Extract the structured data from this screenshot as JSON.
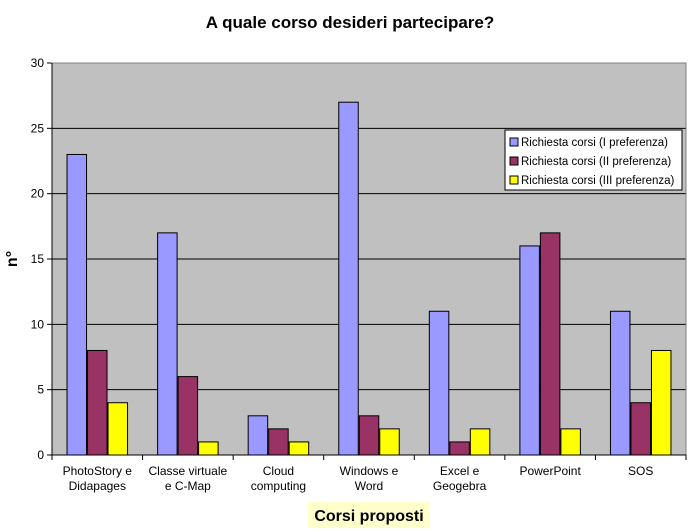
{
  "chart_data": {
    "type": "bar",
    "title": "A quale corso desideri partecipare?",
    "xlabel": "Corsi proposti",
    "ylabel": "n°",
    "ylim": [
      0,
      30
    ],
    "yticks": [
      0,
      5,
      10,
      15,
      20,
      25,
      30
    ],
    "grid": true,
    "legend_position": "right",
    "categories": [
      [
        "PhotoStory e",
        "Didapages"
      ],
      [
        "Classe virtuale",
        "e C-Map"
      ],
      [
        "Cloud",
        "computing"
      ],
      [
        "Windows e",
        "Word"
      ],
      [
        "Excel e",
        "Geogebra"
      ],
      [
        "PowerPoint"
      ],
      [
        "SOS"
      ]
    ],
    "series": [
      {
        "name": "Richiesta corsi (I preferenza)",
        "color": "#9999ff",
        "values": [
          23,
          17,
          3,
          27,
          11,
          16,
          11
        ]
      },
      {
        "name": "Richiesta corsi (II preferenza)",
        "color": "#993366",
        "values": [
          8,
          6,
          2,
          3,
          1,
          17,
          4
        ]
      },
      {
        "name": "Richiesta corsi (III preferenza)",
        "color": "#ffff00",
        "values": [
          4,
          1,
          1,
          2,
          2,
          2,
          8
        ]
      }
    ],
    "colors": {
      "plot_background": "#c0c0c0",
      "xlabel_background": "#ffffcc"
    }
  }
}
